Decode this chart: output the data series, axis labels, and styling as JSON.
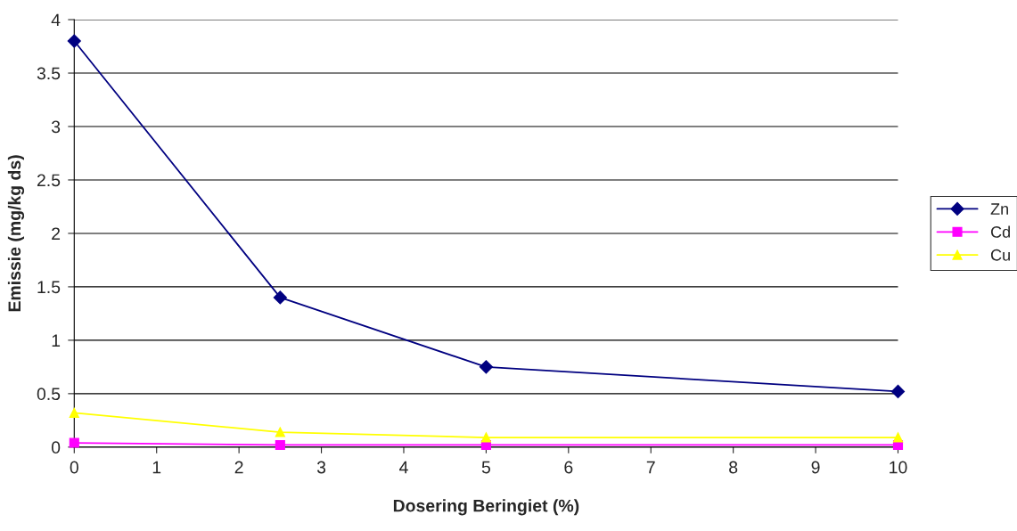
{
  "chart_data": {
    "type": "line",
    "xlabel": "Dosering Beringiet (%)",
    "ylabel": "Emissie (mg/kg ds)",
    "xlim": [
      0,
      10
    ],
    "xticks": [
      0,
      1,
      2,
      3,
      4,
      5,
      6,
      7,
      8,
      9,
      10
    ],
    "ylim": [
      0,
      4
    ],
    "yticks": [
      0,
      0.5,
      1,
      1.5,
      2,
      2.5,
      3,
      3.5,
      4
    ],
    "grid": "y",
    "legend": "right",
    "line_style": "solid",
    "series": [
      {
        "name": "Zn",
        "color": "#000080",
        "marker": "diamond",
        "x": [
          0,
          2.5,
          5,
          10
        ],
        "values": [
          3.8,
          1.4,
          0.75,
          0.52
        ]
      },
      {
        "name": "Cd",
        "color": "#ff00ff",
        "marker": "square",
        "x": [
          0,
          2.5,
          5,
          10
        ],
        "values": [
          0.04,
          0.02,
          0.02,
          0.02
        ]
      },
      {
        "name": "Cu",
        "color": "#ffff00",
        "marker": "triangle",
        "x": [
          0,
          2.5,
          5,
          10
        ],
        "values": [
          0.32,
          0.14,
          0.09,
          0.09
        ]
      }
    ]
  }
}
